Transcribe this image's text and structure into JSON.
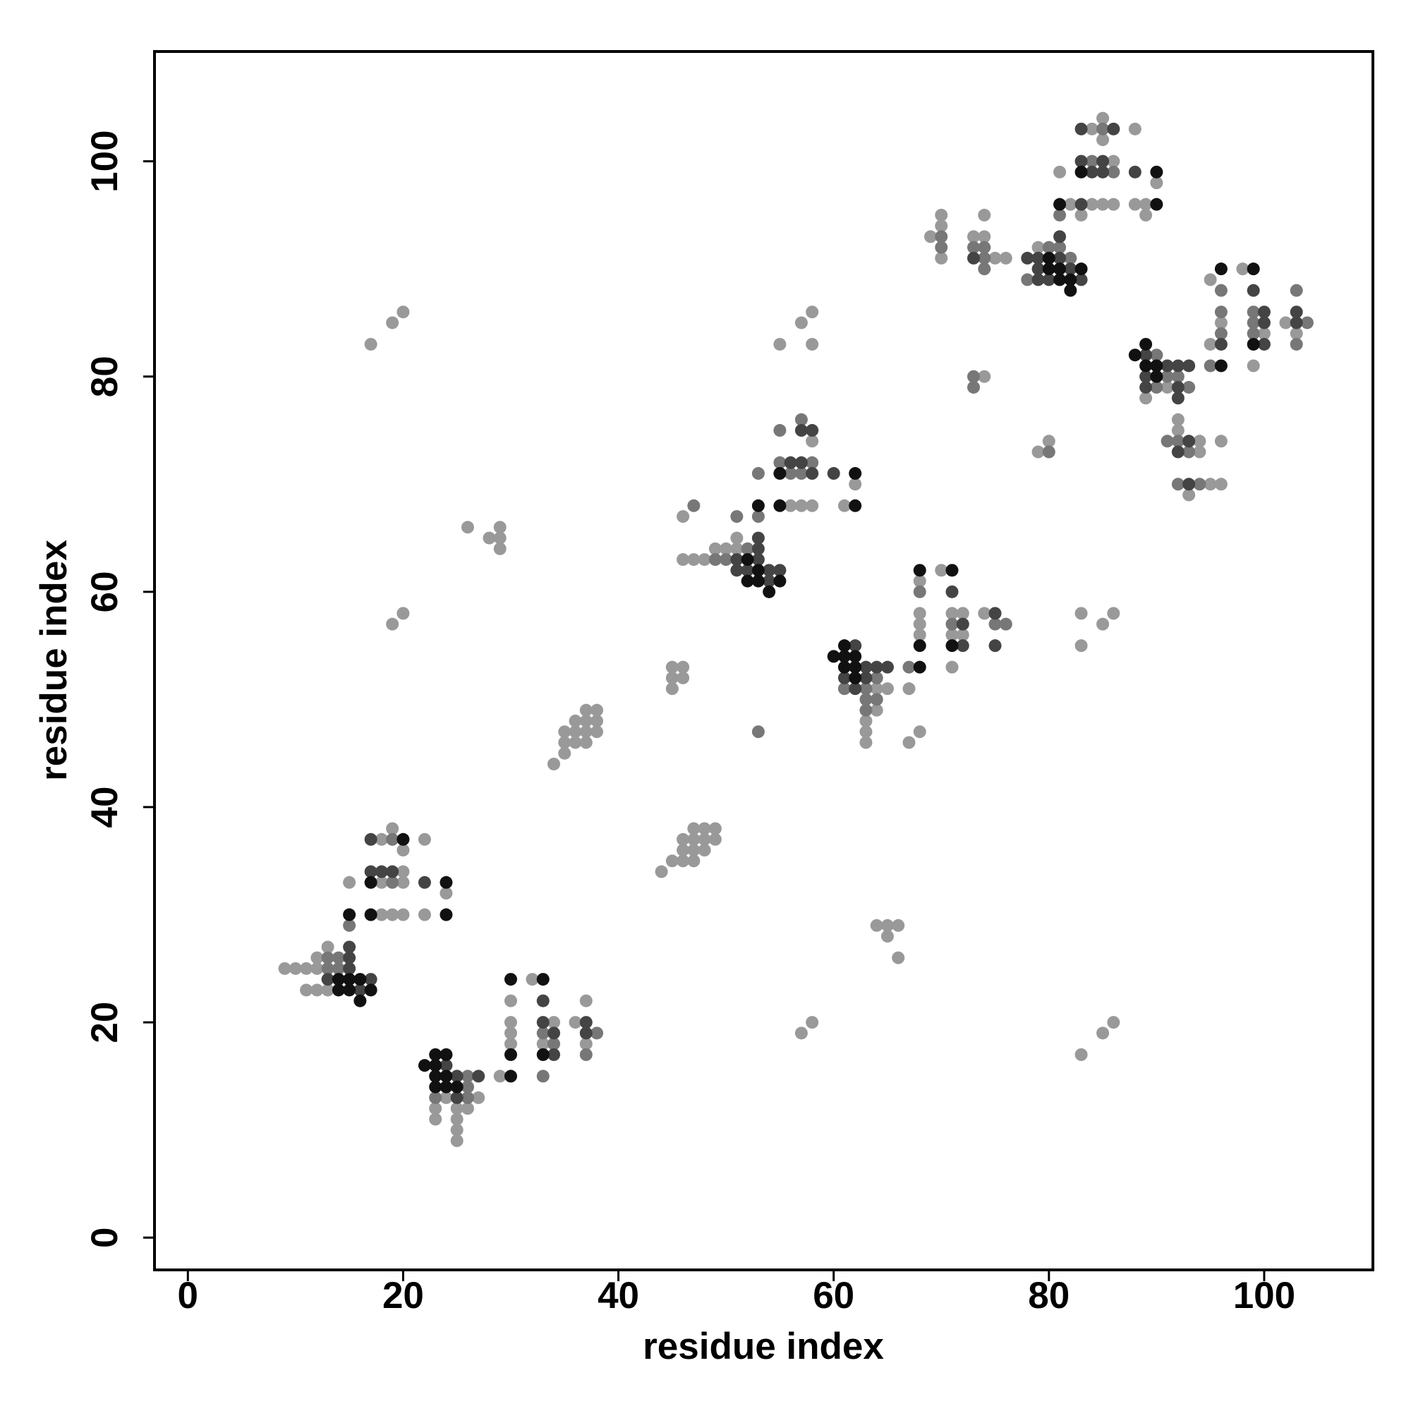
{
  "chart_data": {
    "type": "scatter",
    "xlabel": "residue index",
    "ylabel": "residue index",
    "xlim": [
      -3.1,
      110.1
    ],
    "ylim": [
      -3.0,
      110.2
    ],
    "xticks": [
      0,
      20,
      40,
      60,
      80,
      100
    ],
    "yticks": [
      0,
      20,
      40,
      60,
      80,
      100
    ],
    "series": [
      {
        "color": "#999999",
        "x": [
          9,
          10,
          11,
          12,
          12,
          13,
          11,
          12,
          13,
          18,
          19,
          20,
          22,
          15,
          18,
          20,
          24,
          20,
          18,
          22,
          19,
          20,
          29,
          24,
          27,
          23,
          25,
          26,
          23,
          25,
          25,
          25,
          30,
          33,
          37,
          30,
          30,
          34,
          36,
          30,
          37,
          32,
          34,
          35,
          35,
          35,
          36,
          36,
          36,
          37,
          37,
          37,
          37,
          38,
          38,
          38,
          44,
          45,
          46,
          46,
          46,
          47,
          47,
          47,
          47,
          48,
          48,
          48,
          49,
          49,
          45,
          45,
          45,
          46,
          46,
          46,
          17,
          19,
          20,
          26,
          28,
          29,
          29,
          29,
          19,
          20,
          55,
          57,
          58,
          58,
          57,
          58,
          64,
          65,
          65,
          66,
          66,
          83,
          85,
          86,
          83,
          83,
          85,
          86,
          74,
          79,
          80,
          46,
          47,
          48,
          49,
          50,
          51,
          51,
          56,
          57,
          58,
          61,
          62,
          58,
          64,
          65,
          67,
          64,
          63,
          63,
          68,
          63,
          67,
          68,
          68,
          68,
          68,
          70,
          71,
          71,
          71,
          72,
          72,
          74,
          69,
          70,
          70,
          70,
          73,
          74,
          74,
          75,
          76,
          79,
          83,
          82,
          84,
          85,
          86,
          88,
          89,
          81,
          86,
          90,
          89,
          84,
          88,
          85,
          85,
          91,
          89,
          92,
          92,
          94,
          96,
          94,
          95,
          96,
          93,
          96,
          95,
          95,
          98,
          99,
          100,
          102,
          103
        ],
        "values": [
          25,
          25,
          25,
          25,
          26,
          27,
          23,
          23,
          23,
          30,
          30,
          30,
          30,
          33,
          33,
          33,
          32,
          34,
          37,
          37,
          38,
          36,
          15,
          13,
          13,
          12,
          12,
          12,
          11,
          11,
          10,
          9,
          18,
          18,
          18,
          19,
          20,
          20,
          20,
          22,
          22,
          24,
          44,
          45,
          46,
          47,
          46,
          47,
          48,
          46,
          47,
          48,
          49,
          47,
          48,
          49,
          34,
          35,
          35,
          36,
          37,
          35,
          36,
          37,
          38,
          36,
          37,
          38,
          37,
          38,
          51,
          52,
          53,
          52,
          53,
          67,
          83,
          85,
          86,
          66,
          65,
          64,
          65,
          66,
          57,
          58,
          83,
          85,
          83,
          86,
          19,
          20,
          29,
          28,
          29,
          29,
          26,
          17,
          19,
          20,
          55,
          58,
          57,
          58,
          80,
          73,
          74,
          63,
          63,
          63,
          64,
          64,
          64,
          65,
          68,
          68,
          68,
          68,
          70,
          74,
          51,
          51,
          51,
          49,
          48,
          47,
          47,
          46,
          46,
          61,
          58,
          57,
          56,
          62,
          58,
          56,
          53,
          58,
          56,
          58,
          93,
          95,
          94,
          91,
          93,
          95,
          93,
          91,
          91,
          92,
          95,
          96,
          96,
          96,
          96,
          96,
          96,
          99,
          100,
          98,
          95,
          103,
          103,
          104,
          102,
          79,
          78,
          76,
          75,
          74,
          74,
          73,
          70,
          70,
          69,
          85,
          89,
          83,
          90,
          81,
          84,
          85,
          84
        ]
      },
      {
        "color": "#777777",
        "x": [
          13,
          14,
          13,
          14,
          15,
          19,
          19,
          26,
          23,
          26,
          26,
          37,
          34,
          33,
          38,
          33,
          53,
          47,
          73,
          73,
          80,
          49,
          50,
          52,
          51,
          53,
          53,
          56,
          57,
          55,
          58,
          55,
          57,
          67,
          64,
          61,
          63,
          63,
          64,
          63,
          68,
          71,
          75,
          76,
          70,
          70,
          73,
          74,
          74,
          74,
          82,
          80,
          81,
          78,
          81,
          86,
          84,
          85,
          90,
          91,
          92,
          90,
          93,
          91,
          92,
          93,
          92,
          94,
          96,
          96,
          96,
          95,
          99,
          99,
          99,
          103,
          103,
          104
        ],
        "values": [
          25,
          25,
          26,
          26,
          29,
          33,
          37,
          15,
          13,
          13,
          14,
          17,
          18,
          19,
          19,
          15,
          47,
          68,
          79,
          80,
          73,
          63,
          63,
          64,
          67,
          67,
          71,
          71,
          71,
          72,
          72,
          75,
          76,
          53,
          52,
          51,
          51,
          50,
          50,
          49,
          60,
          57,
          57,
          57,
          93,
          92,
          92,
          92,
          91,
          90,
          91,
          92,
          92,
          89,
          95,
          99,
          100,
          103,
          82,
          80,
          80,
          79,
          79,
          74,
          74,
          73,
          70,
          70,
          88,
          86,
          84,
          81,
          86,
          85,
          84,
          88,
          83,
          85
        ]
      },
      {
        "color": "#444444",
        "x": [
          15,
          15,
          15,
          13,
          17,
          16,
          22,
          17,
          18,
          19,
          17,
          24,
          25,
          27,
          25,
          34,
          34,
          37,
          33,
          37,
          33,
          51,
          53,
          53,
          51,
          52,
          54,
          55,
          54,
          53,
          58,
          60,
          56,
          57,
          57,
          58,
          62,
          63,
          64,
          65,
          61,
          63,
          62,
          71,
          72,
          72,
          75,
          75,
          73,
          78,
          79,
          81,
          79,
          82,
          79,
          80,
          83,
          81,
          83,
          84,
          85,
          88,
          83,
          85,
          83,
          86,
          89,
          91,
          92,
          93,
          89,
          89,
          92,
          92,
          93,
          92,
          93,
          96,
          99,
          100,
          100,
          100,
          103,
          103
        ],
        "values": [
          25,
          26,
          27,
          24,
          24,
          23,
          33,
          34,
          34,
          34,
          37,
          16,
          15,
          15,
          13,
          17,
          19,
          19,
          20,
          20,
          22,
          63,
          63,
          64,
          62,
          62,
          62,
          62,
          61,
          65,
          71,
          71,
          72,
          72,
          75,
          75,
          55,
          53,
          53,
          53,
          52,
          52,
          51,
          60,
          57,
          55,
          58,
          55,
          91,
          91,
          91,
          91,
          90,
          90,
          89,
          89,
          89,
          93,
          96,
          99,
          99,
          99,
          100,
          100,
          103,
          103,
          82,
          81,
          81,
          81,
          80,
          79,
          79,
          78,
          74,
          73,
          70,
          83,
          88,
          86,
          85,
          83,
          86,
          85
        ]
      },
      {
        "color": "#111111",
        "x": [
          15,
          14,
          16,
          14,
          15,
          17,
          16,
          15,
          17,
          24,
          17,
          24,
          20,
          23,
          24,
          22,
          23,
          23,
          24,
          30,
          23,
          24,
          25,
          30,
          33,
          30,
          33,
          52,
          53,
          52,
          53,
          55,
          54,
          53,
          55,
          62,
          55,
          62,
          61,
          60,
          61,
          62,
          61,
          62,
          68,
          62,
          68,
          68,
          71,
          71,
          80,
          80,
          81,
          83,
          81,
          82,
          82,
          81,
          90,
          83,
          90,
          88,
          89,
          90,
          89,
          90,
          96,
          96,
          99,
          99
        ],
        "values": [
          24,
          24,
          24,
          23,
          23,
          23,
          22,
          30,
          30,
          30,
          33,
          33,
          37,
          17,
          17,
          16,
          16,
          15,
          15,
          15,
          14,
          14,
          14,
          17,
          17,
          24,
          24,
          63,
          62,
          61,
          61,
          61,
          60,
          68,
          68,
          68,
          71,
          71,
          55,
          54,
          54,
          54,
          53,
          53,
          53,
          52,
          62,
          55,
          62,
          55,
          91,
          90,
          90,
          90,
          89,
          89,
          88,
          96,
          96,
          99,
          99,
          82,
          81,
          81,
          83,
          80,
          90,
          81,
          90,
          83
        ]
      }
    ]
  }
}
